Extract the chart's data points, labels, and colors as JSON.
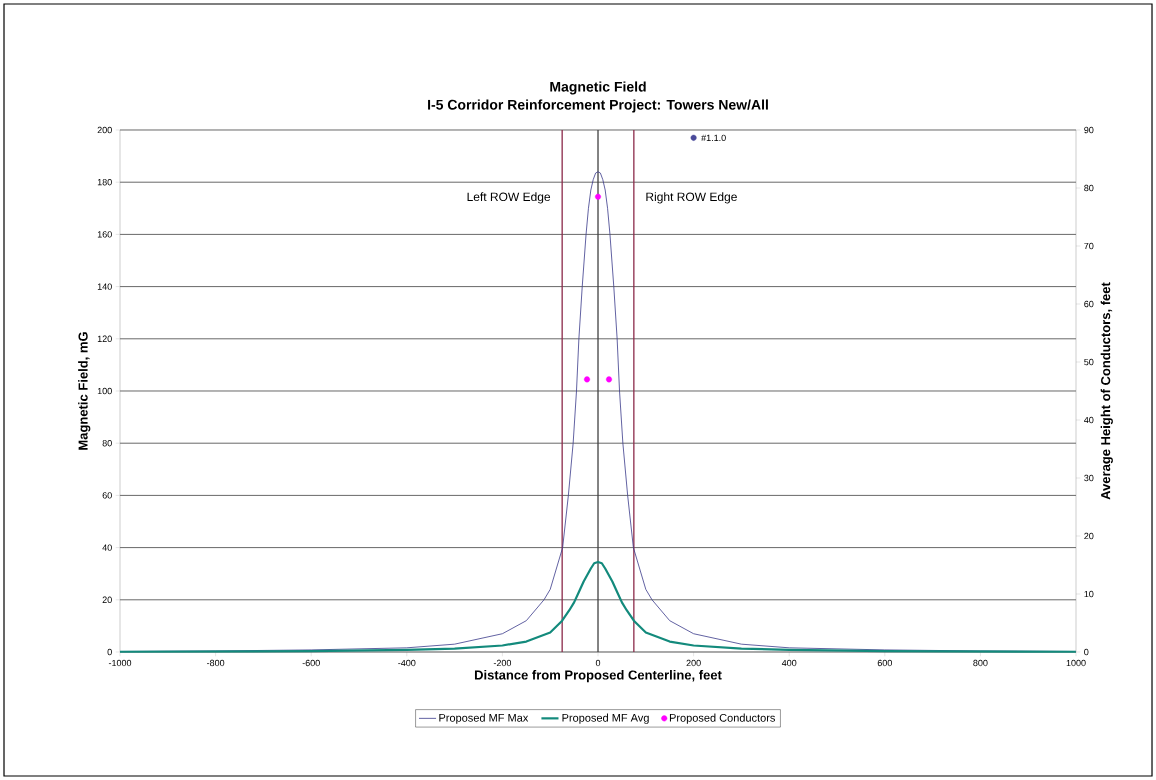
{
  "chart_data": {
    "type": "line",
    "title": "Magnetic Field\nI-5 Corridor Reinforcement Project: Towers New/All",
    "xlabel": "Distance from Proposed Centerline, feet",
    "ylabel": "Magnetic Field, mG",
    "y2label": "Average Height of Conductors, feet",
    "xlim": [
      -1000,
      1000
    ],
    "xticks": [
      -1000,
      -800,
      -600,
      -400,
      -200,
      0,
      200,
      400,
      600,
      800,
      1000
    ],
    "ylim": [
      0,
      200
    ],
    "yticks": [
      0,
      20,
      40,
      60,
      80,
      100,
      120,
      140,
      160,
      180,
      200
    ],
    "y2lim": [
      0,
      90
    ],
    "y2ticks": [
      0,
      10,
      20,
      30,
      40,
      50,
      60,
      70,
      80,
      90
    ],
    "grid": "y",
    "legend": "bottom",
    "series": [
      {
        "name": "Proposed MF Max",
        "color": "#3a3a8a",
        "x": [
          -1000,
          -800,
          -600,
          -400,
          -300,
          -200,
          -150,
          -113,
          -100,
          -74,
          -62,
          -52,
          -45,
          -40,
          -33,
          -25,
          -20,
          -15,
          -10,
          -5,
          0,
          5,
          10,
          15,
          20,
          25,
          33,
          40,
          45,
          52,
          62,
          74,
          100,
          113,
          150,
          200,
          300,
          400,
          600,
          800,
          1000
        ],
        "values": [
          0.2,
          0.4,
          0.8,
          1.6,
          3,
          7,
          12,
          20,
          24,
          40,
          60,
          80,
          100,
          120,
          140,
          160,
          170,
          177,
          181,
          183.5,
          184,
          183.5,
          181,
          177,
          170,
          160,
          140,
          120,
          100,
          80,
          60,
          40,
          24,
          20,
          12,
          7,
          3,
          1.6,
          0.8,
          0.4,
          0.2
        ]
      },
      {
        "name": "Proposed MF Avg",
        "color": "#138a7c",
        "x": [
          -1000,
          -600,
          -400,
          -300,
          -200,
          -150,
          -100,
          -75,
          -60,
          -50,
          -40,
          -30,
          -15,
          -8,
          0,
          8,
          15,
          30,
          40,
          50,
          60,
          75,
          100,
          150,
          200,
          300,
          400,
          600,
          1000
        ],
        "values": [
          0.1,
          0.3,
          0.8,
          1.3,
          2.5,
          4,
          7.5,
          12,
          16,
          19,
          23,
          27,
          32,
          34,
          34.5,
          34,
          32,
          27,
          23,
          19,
          16,
          12,
          7.5,
          4,
          2.5,
          1.3,
          0.8,
          0.3,
          0.1
        ]
      },
      {
        "name": "Proposed Conductors",
        "type": "scatter",
        "axis": "y2",
        "marker": "circle",
        "color": "#ff00ff",
        "x": [
          -23,
          0,
          23
        ],
        "values": [
          47,
          78.5,
          47
        ]
      },
      {
        "name": "#1.1.0",
        "type": "scatter",
        "marker": "circle",
        "color": "#4a4a9a",
        "x": [
          200
        ],
        "values": [
          197
        ]
      }
    ],
    "ref_lines": [
      {
        "axis": "x",
        "value": 0,
        "color": "#404040"
      },
      {
        "axis": "x",
        "value": -75,
        "label": "Left ROW Edge",
        "color": "#8b2a4a"
      },
      {
        "axis": "x",
        "value": 75,
        "label": "Right ROW Edge",
        "color": "#8b2a4a"
      }
    ]
  }
}
